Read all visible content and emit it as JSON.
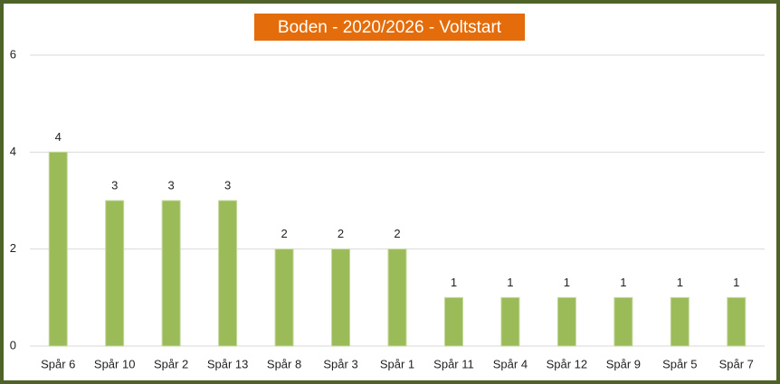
{
  "chart_data": {
    "type": "bar",
    "title": "Boden - 2020/2026 - Voltstart",
    "categories": [
      "Spår 6",
      "Spår 10",
      "Spår 2",
      "Spår 13",
      "Spår 8",
      "Spår 3",
      "Spår 1",
      "Spår 11",
      "Spår 4",
      "Spår 12",
      "Spår 9",
      "Spår 5",
      "Spår 7"
    ],
    "values": [
      4,
      3,
      3,
      3,
      2,
      2,
      2,
      1,
      1,
      1,
      1,
      1,
      1
    ],
    "color": "#9bbb59",
    "ylim": [
      0,
      6
    ],
    "yticks": [
      0,
      2,
      4,
      6
    ],
    "grid": true
  }
}
